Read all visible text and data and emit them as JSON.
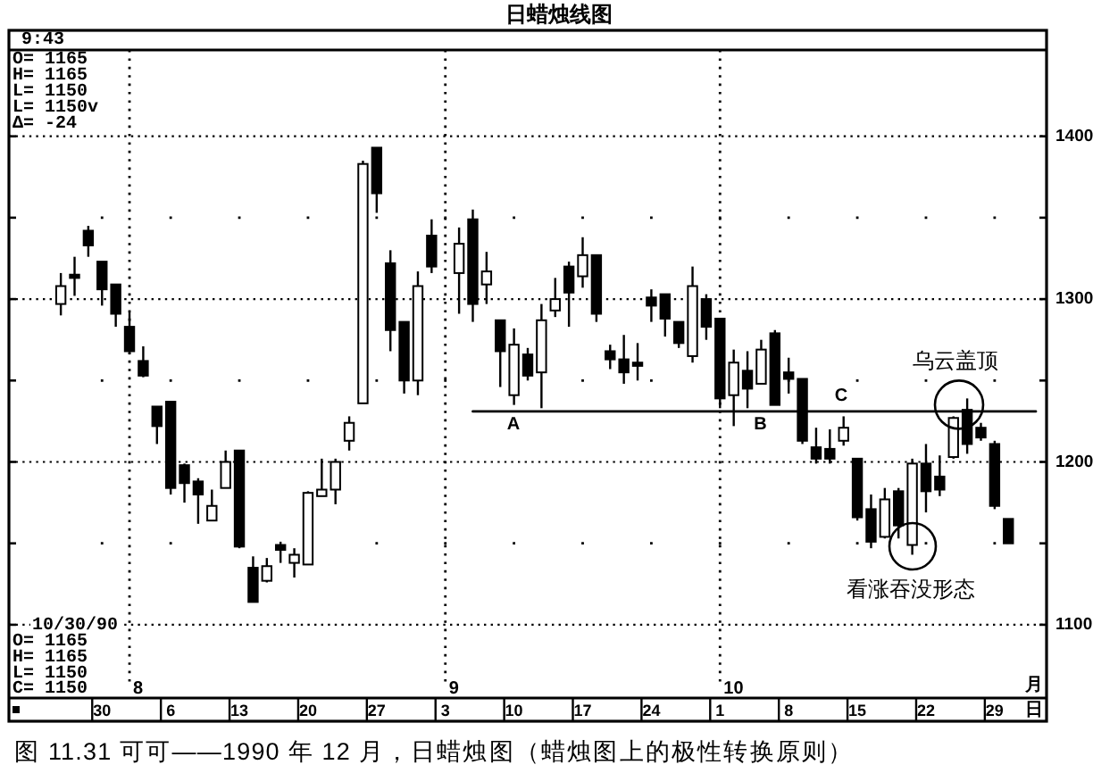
{
  "chart_data": {
    "type": "candlestick",
    "title": "日蜡烛线图",
    "xlabel": "日",
    "color": "#000000",
    "categories": [
      null,
      null,
      null,
      null,
      null,
      null,
      "30",
      null,
      null,
      null,
      null,
      "6",
      null,
      null,
      null,
      null,
      "13",
      null,
      null,
      null,
      null,
      "20",
      null,
      null,
      null,
      null,
      "27",
      null,
      null,
      null,
      null,
      "3",
      null,
      null,
      null,
      null,
      "10",
      null,
      null,
      null,
      null,
      "17",
      null,
      null,
      null,
      null,
      "24",
      null,
      null,
      null,
      null,
      "1",
      null,
      null,
      null,
      null,
      "8",
      null,
      null,
      null,
      null,
      "15",
      null,
      null,
      null,
      null,
      "22",
      null,
      null,
      null,
      null,
      "29",
      null,
      null,
      null
    ],
    "ohlc": [
      null,
      null,
      null,
      [
        1297,
        1316,
        1290,
        1308
      ],
      [
        1315,
        1326,
        1302,
        1313
      ],
      [
        1342,
        1345,
        1326,
        1333
      ],
      [
        1323,
        1323,
        1296,
        1306
      ],
      [
        1309,
        1309,
        1283,
        1291
      ],
      [
        1283,
        1292,
        1266,
        1268
      ],
      [
        1262,
        1271,
        1252,
        1253
      ],
      [
        1234,
        1234,
        1211,
        1222
      ],
      [
        1237,
        1237,
        1180,
        1184
      ],
      [
        1198,
        1199,
        1175,
        1187
      ],
      [
        1188,
        1190,
        1162,
        1180
      ],
      [
        1164,
        1183,
        1164,
        1173
      ],
      [
        1184,
        1207,
        1184,
        1200
      ],
      [
        1207,
        1207,
        1147,
        1148
      ],
      [
        1135,
        1142,
        1114,
        1114
      ],
      [
        1127,
        1141,
        1126,
        1136
      ],
      [
        1149,
        1151,
        1138,
        1146
      ],
      [
        1138,
        1147,
        1129,
        1143
      ],
      [
        1137,
        1182,
        1137,
        1181
      ],
      [
        1179,
        1202,
        1179,
        1183
      ],
      [
        1183,
        1202,
        1174,
        1200
      ],
      [
        1213,
        1228,
        1207,
        1224
      ],
      [
        1236,
        1385,
        1236,
        1383
      ],
      [
        1393,
        1393,
        1353,
        1365
      ],
      [
        1322,
        1330,
        1268,
        1281
      ],
      [
        1286,
        1286,
        1242,
        1250
      ],
      [
        1250,
        1317,
        1241,
        1308
      ],
      [
        1339,
        1349,
        1316,
        1320
      ],
      null,
      [
        1316,
        1344,
        1291,
        1334
      ],
      [
        1349,
        1355,
        1286,
        1297
      ],
      [
        1309,
        1329,
        1297,
        1317
      ],
      [
        1287,
        1287,
        1246,
        1268
      ],
      [
        1241,
        1282,
        1235,
        1272
      ],
      [
        1266,
        1270,
        1250,
        1253
      ],
      [
        1255,
        1297,
        1233,
        1287
      ],
      [
        1293,
        1313,
        1289,
        1300
      ],
      [
        1320,
        1323,
        1283,
        1304
      ],
      [
        1314,
        1338,
        1307,
        1327
      ],
      [
        1327,
        1327,
        1286,
        1291
      ],
      [
        1268,
        1272,
        1257,
        1263
      ],
      [
        1263,
        1278,
        1248,
        1255
      ],
      [
        1261,
        1273,
        1250,
        1259
      ],
      [
        1301,
        1306,
        1286,
        1296
      ],
      [
        1303,
        1303,
        1277,
        1288
      ],
      [
        1286,
        1286,
        1270,
        1273
      ],
      [
        1265,
        1320,
        1261,
        1308
      ],
      [
        1300,
        1303,
        1275,
        1283
      ],
      [
        1288,
        1288,
        1233,
        1239
      ],
      [
        1241,
        1269,
        1222,
        1261
      ],
      [
        1256,
        1268,
        1233,
        1245
      ],
      [
        1248,
        1275,
        1248,
        1269
      ],
      [
        1279,
        1281,
        1235,
        1235
      ],
      [
        1255,
        1264,
        1242,
        1251
      ],
      [
        1251,
        1251,
        1211,
        1213
      ],
      [
        1209,
        1221,
        1199,
        1202
      ],
      [
        1208,
        1220,
        1199,
        1202
      ],
      [
        1213,
        1228,
        1210,
        1221
      ],
      [
        1202,
        1202,
        1164,
        1166
      ],
      [
        1171,
        1180,
        1147,
        1151
      ],
      [
        1154,
        1184,
        1153,
        1177
      ],
      [
        1182,
        1184,
        1153,
        1161
      ],
      [
        1149,
        1202,
        1143,
        1199
      ],
      [
        1199,
        1211,
        1169,
        1182
      ],
      [
        1191,
        1204,
        1179,
        1183
      ],
      [
        1203,
        1228,
        1202,
        1227
      ],
      [
        1232,
        1239,
        1205,
        1211
      ],
      [
        1221,
        1224,
        1213,
        1215
      ],
      [
        1211,
        1213,
        1171,
        1173
      ],
      [
        1165,
        1165,
        1150,
        1150
      ],
      null,
      null
    ],
    "colors": [
      null,
      null,
      null,
      "#ffffff",
      "#000000",
      "#000000",
      "#000000",
      "#000000",
      "#000000",
      "#000000",
      "#000000",
      "#000000",
      "#000000",
      "#000000",
      "#ffffff",
      "#ffffff",
      "#000000",
      "#000000",
      "#ffffff",
      "#000000",
      "#ffffff",
      "#ffffff",
      "#ffffff",
      "#ffffff",
      "#ffffff",
      "#ffffff",
      "#000000",
      "#000000",
      "#000000",
      "#ffffff",
      "#000000",
      null,
      "#ffffff",
      "#000000",
      "#ffffff",
      "#000000",
      "#ffffff",
      "#000000",
      "#ffffff",
      "#ffffff",
      "#000000",
      "#ffffff",
      "#000000",
      "#000000",
      "#000000",
      "#000000",
      "#000000",
      "#000000",
      "#000000",
      "#ffffff",
      "#000000",
      "#000000",
      "#ffffff",
      "#000000",
      "#ffffff",
      "#000000",
      "#000000",
      "#000000",
      "#000000",
      "#000000",
      "#ffffff",
      "#000000",
      "#000000",
      "#ffffff",
      "#000000",
      "#ffffff",
      "#000000",
      "#000000",
      "#ffffff",
      "#000000",
      "#000000",
      "#000000",
      "#000000",
      null,
      null
    ],
    "series": [
      {
        "type": "line",
        "color": "#000000",
        "values": [
          null,
          null,
          null,
          null,
          null,
          null,
          null,
          null,
          null,
          null,
          null,
          null,
          null,
          null,
          null,
          null,
          null,
          null,
          null,
          null,
          null,
          null,
          null,
          null,
          null,
          null,
          null,
          null,
          null,
          null,
          null,
          null,
          null,
          1231,
          1231,
          1231,
          1231,
          1231,
          1231,
          1231,
          1231,
          1231,
          1231,
          1231,
          1231,
          1231,
          1231,
          1231,
          1231,
          1231,
          1231,
          1231,
          1231,
          1231,
          1231,
          1231,
          1231,
          1231,
          1231,
          1231,
          1231,
          1231,
          1231,
          1231,
          1231,
          1231,
          1231,
          1231,
          1231,
          1231,
          1231,
          1231,
          1231,
          1231,
          1231
        ]
      }
    ],
    "ylim": [
      1055,
      1453
    ],
    "yticks": [
      1100,
      {
        "value": 1150,
        "label": null
      },
      1200,
      {
        "value": 1250,
        "label": null
      },
      1300,
      {
        "value": 1350,
        "label": null
      },
      1400
    ],
    "grid": "y",
    "ref_lines": [
      {
        "axis": "x",
        "value": "3",
        "line_style": "dotted"
      },
      {
        "axis": "x",
        "value": "1",
        "line_style": "dotted"
      }
    ],
    "annotations": [
      "A",
      "B",
      "C",
      "乌云盖顶",
      "看涨吞没形态",
      "9:43",
      "O= 1165",
      "H= 1165",
      "L= 1150",
      "L= 1150v",
      "Δ= -24",
      "10/30/90",
      "O= 1165",
      "H= 1165",
      "L= 1150",
      "C= 1150",
      "8",
      "9",
      "10",
      "月",
      "图 11.31  可可——1990 年 12 月，日蜡烛图（蜡烛图上的极性转换原则）"
    ]
  }
}
